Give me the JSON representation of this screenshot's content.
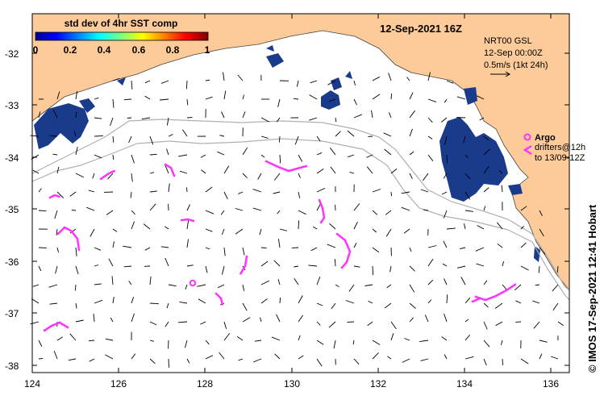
{
  "map": {
    "date_label": "12-Sep-2021 16Z",
    "colorbar": {
      "title": "std dev of 4hr SST comp",
      "ticks": [
        "0",
        "0.2",
        "0.4",
        "0.6",
        "0.8",
        "1"
      ]
    },
    "info": {
      "line1": "NRT00 GSL",
      "line2": "12-Sep 00:00Z",
      "line3": "0.5m/s (1kt 24h)"
    },
    "legend": {
      "argo_label": "Argo",
      "drifters_line1": "drifters@12h",
      "drifters_line2": "to 13/09-12Z"
    },
    "credit": "©  IMOS 17-Sep-2021 12:41 Hobart",
    "lat_ticks": [
      "-32",
      "-33",
      "-34",
      "-35",
      "-36",
      "-37",
      "-38"
    ],
    "lon_ticks": [
      "124",
      "126",
      "128",
      "130",
      "132",
      "134",
      "136"
    ],
    "colors": {
      "land": "#fccb99",
      "sst_high_var": "#1a3b8c",
      "drifter": "#ff33ff",
      "bathymetry": "#b0b0b0"
    }
  }
}
